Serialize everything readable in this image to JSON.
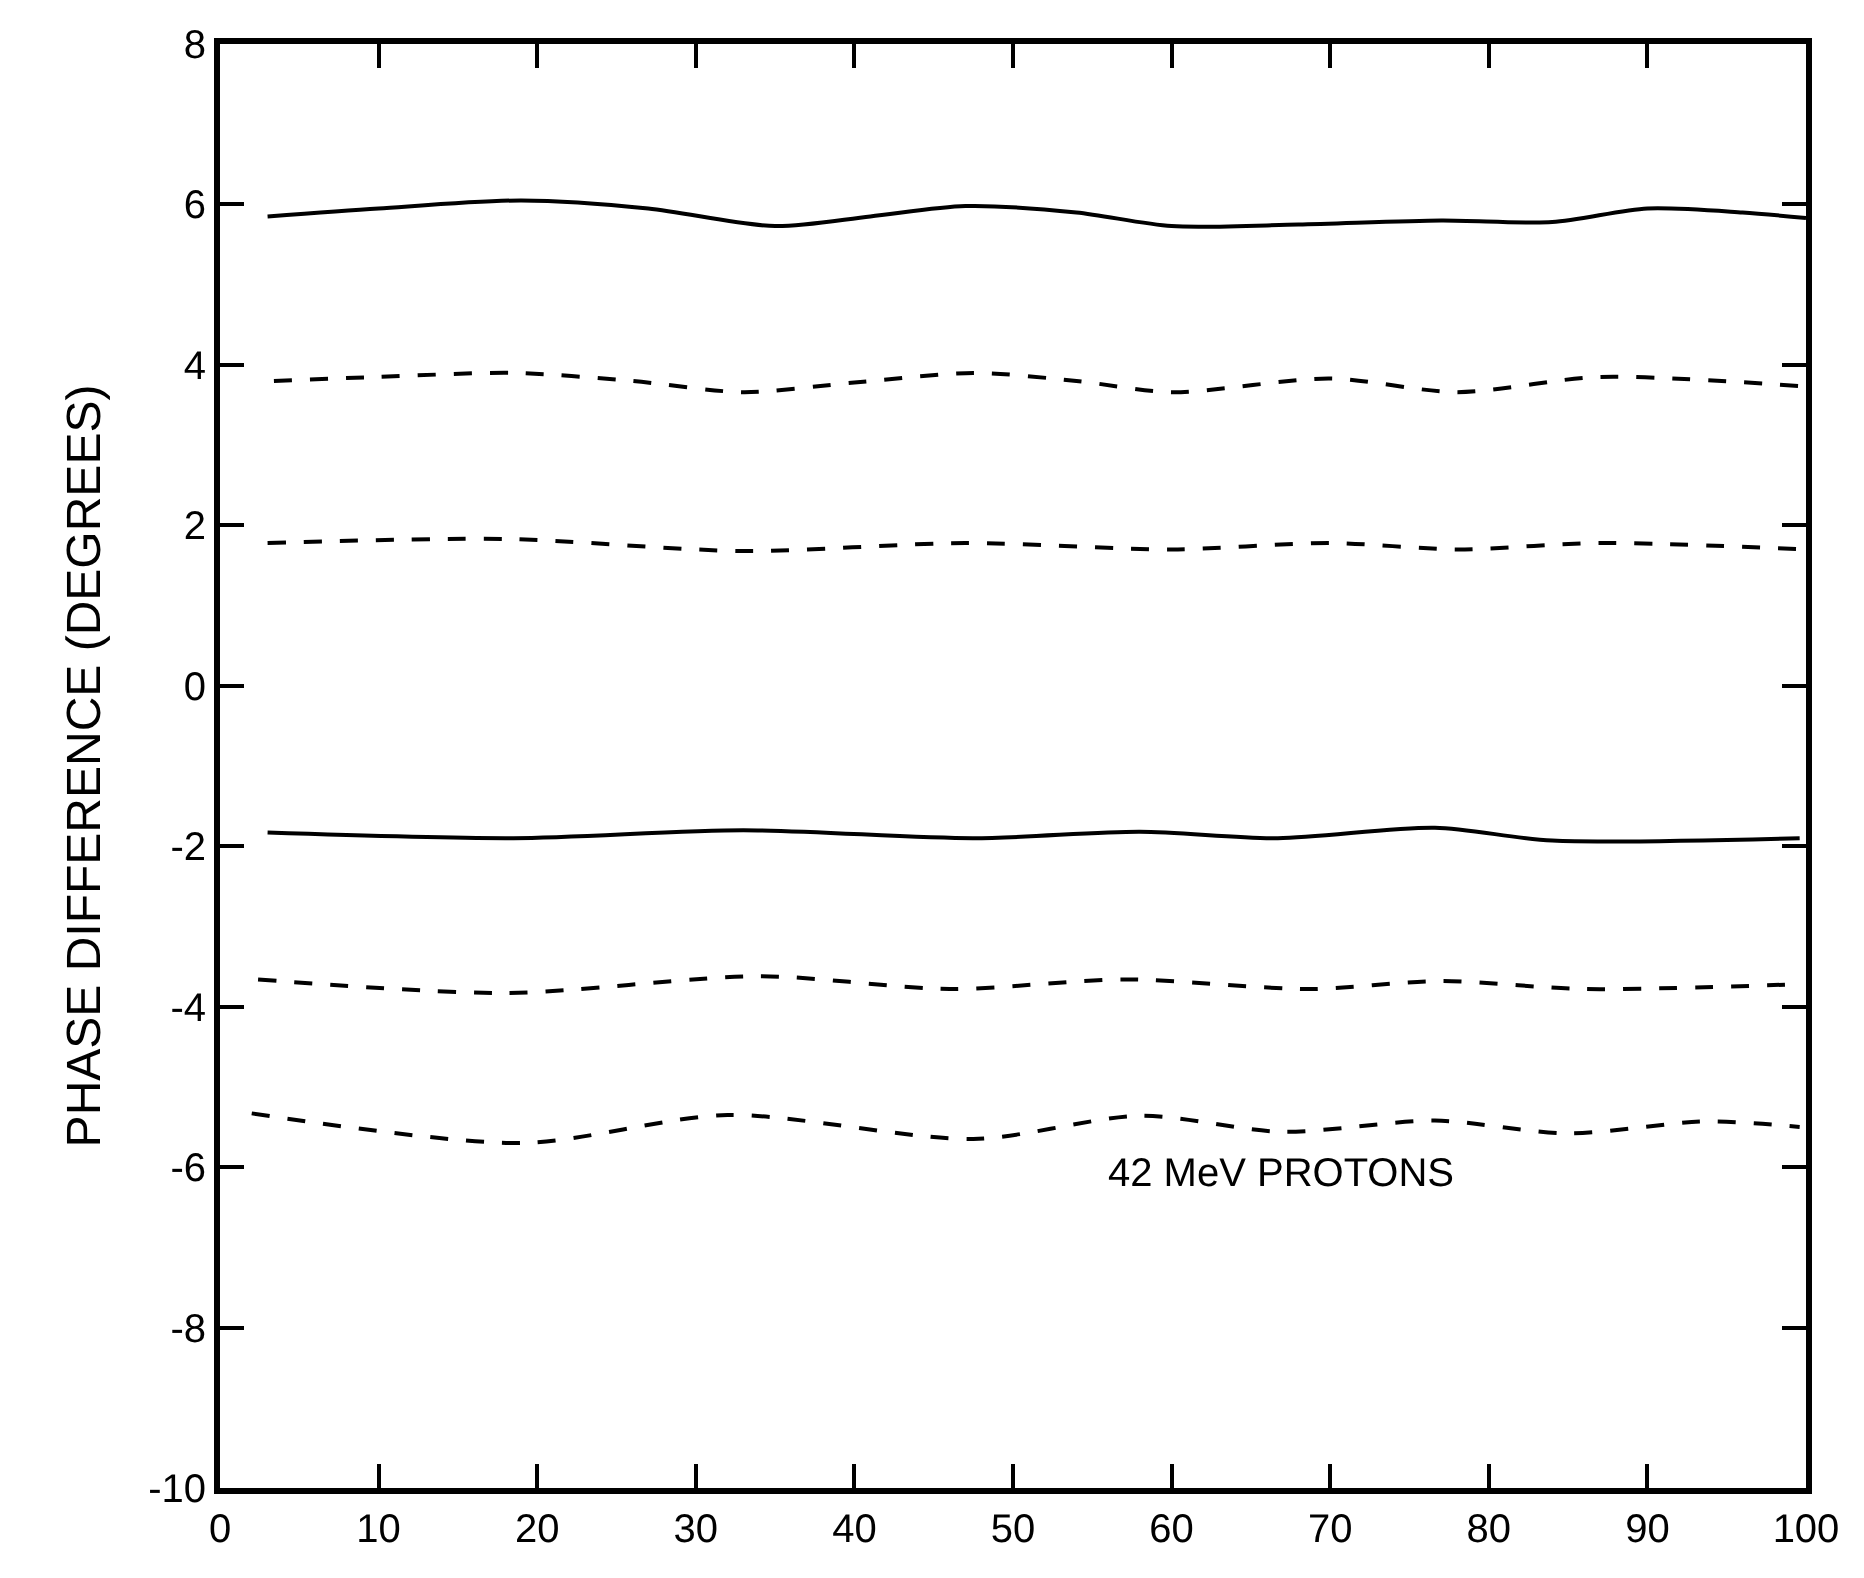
{
  "chart_data": {
    "type": "line",
    "ylabel": "PHASE DIFFERENCE (DEGREES)",
    "annotations": [
      "42 MeV PROTONS"
    ],
    "xlim": [
      0,
      100
    ],
    "ylim": [
      -10,
      8
    ],
    "xticks": [
      0,
      10,
      20,
      30,
      40,
      50,
      60,
      70,
      80,
      90,
      100
    ],
    "yticks": [
      -10,
      -8,
      -6,
      -4,
      -2,
      0,
      2,
      4,
      6,
      8
    ],
    "grid": false,
    "marker": "none",
    "series": [
      {
        "color": "#000000",
        "line_style": "solid",
        "x": [
          3,
          10,
          19,
          27,
          35,
          41,
          47,
          54,
          60,
          68,
          77,
          84,
          90,
          96,
          100
        ],
        "values": [
          5.85,
          5.95,
          6.05,
          5.95,
          5.73,
          5.85,
          5.98,
          5.9,
          5.73,
          5.75,
          5.8,
          5.78,
          5.95,
          5.9,
          5.83
        ]
      },
      {
        "color": "#000000",
        "line_style": "dashed",
        "x": [
          3.4,
          10,
          18.5,
          26,
          33,
          40,
          47.5,
          54,
          60,
          70,
          78,
          87,
          100
        ],
        "values": [
          3.8,
          3.85,
          3.9,
          3.8,
          3.66,
          3.78,
          3.9,
          3.8,
          3.66,
          3.83,
          3.66,
          3.85,
          3.73
        ]
      },
      {
        "color": "#000000",
        "line_style": "dashed",
        "x": [
          3,
          18,
          33,
          47,
          60,
          70,
          78,
          87,
          100
        ],
        "values": [
          1.78,
          1.83,
          1.68,
          1.78,
          1.7,
          1.78,
          1.7,
          1.78,
          1.7
        ]
      },
      {
        "color": "#000000",
        "line_style": "solid",
        "x": [
          3,
          18.5,
          33,
          47.5,
          58,
          66.7,
          76.6,
          84,
          99.6
        ],
        "values": [
          -1.83,
          -1.9,
          -1.8,
          -1.9,
          -1.82,
          -1.9,
          -1.77,
          -1.93,
          -1.9
        ]
      },
      {
        "color": "#000000",
        "line_style": "dashed",
        "x": [
          2.4,
          18,
          34,
          46,
          57,
          68.7,
          77,
          86,
          99.6
        ],
        "values": [
          -3.66,
          -3.83,
          -3.62,
          -3.78,
          -3.66,
          -3.78,
          -3.68,
          -3.78,
          -3.72
        ]
      },
      {
        "color": "#000000",
        "line_style": "dashed",
        "x": [
          2,
          19,
          32,
          47.5,
          58,
          67,
          76.6,
          85,
          93.7,
          99.6
        ],
        "values": [
          -5.33,
          -5.7,
          -5.35,
          -5.65,
          -5.36,
          -5.56,
          -5.42,
          -5.58,
          -5.43,
          -5.5
        ]
      }
    ]
  }
}
